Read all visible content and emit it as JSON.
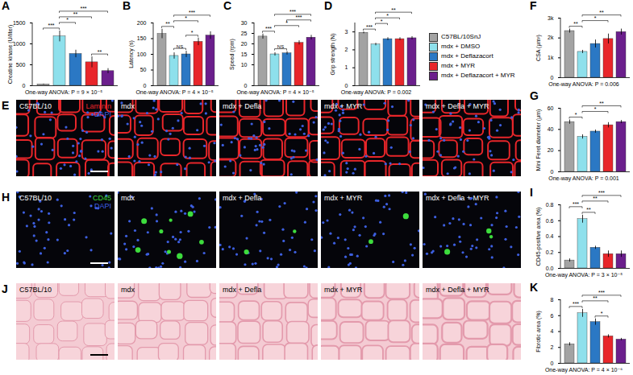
{
  "groups": [
    {
      "name": "C57BL/10SnJ",
      "color": "#a3a3a3"
    },
    {
      "name": "mdx + DMSO",
      "color": "#8ee0ec"
    },
    {
      "name": "mdx + Deflazacort",
      "color": "#2b78c4"
    },
    {
      "name": "mdx + MYR",
      "color": "#e8262a"
    },
    {
      "name": "mdx + Deflazacort + MYR",
      "color": "#6b1f8c"
    }
  ],
  "image_panels": [
    {
      "panel": "E",
      "labels": [
        "C57BL/10",
        "mdx",
        "mdx + Defla",
        "mdx + MYR",
        "mdx + Defla + MYR"
      ],
      "stains": [
        {
          "text": "Laminin",
          "color": "#e8262a"
        },
        {
          "text": "DAPI",
          "color": "#3d5fe0"
        }
      ]
    },
    {
      "panel": "H",
      "labels": [
        "C57BL/10",
        "mdx",
        "mdx + Defla",
        "mdx + MYR",
        "mdx + Defla + MYR"
      ],
      "stains": [
        {
          "text": "CD45",
          "color": "#3ddc3d"
        },
        {
          "text": "DAPI",
          "color": "#3d5fe0"
        }
      ]
    },
    {
      "panel": "J",
      "labels": [
        "C57BL/10",
        "mdx",
        "mdx + Defla",
        "mdx + MYR",
        "mdx + Defla + MYR"
      ],
      "stains": []
    }
  ],
  "chart_data": [
    {
      "type": "bar",
      "panel": "A",
      "y_label": "Creatine kinase (U/liter)",
      "tick_labels": "y",
      "categories": [
        "C57BL/10SnJ",
        "mdx + DMSO",
        "mdx + Deflazacort",
        "mdx + MYR",
        "mdx + Deflazacort + MYR"
      ],
      "values": [
        30,
        1180,
        760,
        560,
        350
      ],
      "errors": [
        10,
        130,
        90,
        130,
        60
      ],
      "colors": [
        "#a3a3a3",
        "#8ee0ec",
        "#2b78c4",
        "#e8262a",
        "#6b1f8c"
      ],
      "ylim": [
        0,
        1500
      ],
      "yticks": [
        0,
        500,
        1000,
        1500
      ],
      "significance": [
        {
          "from": 0,
          "to": 1,
          "label": "***"
        },
        {
          "from": 1,
          "to": 2,
          "label": "*"
        },
        {
          "from": 3,
          "to": 4,
          "label": "**"
        },
        {
          "from": 1,
          "to": 3,
          "label": "**"
        },
        {
          "from": 1,
          "to": 4,
          "label": "***"
        }
      ],
      "note": "One-way ANOVA: P = 9 × 10⁻⁵"
    },
    {
      "type": "bar",
      "panel": "B",
      "y_label": "Latency (s)",
      "tick_labels": "y",
      "categories": [
        "C57BL/10SnJ",
        "mdx + DMSO",
        "mdx + Deflazacort",
        "mdx + MYR",
        "mdx + Deflazacort + MYR"
      ],
      "values": [
        165,
        95,
        100,
        140,
        160
      ],
      "errors": [
        15,
        10,
        10,
        12,
        12
      ],
      "colors": [
        "#a3a3a3",
        "#8ee0ec",
        "#2b78c4",
        "#e8262a",
        "#6b1f8c"
      ],
      "ylim": [
        0,
        200
      ],
      "yticks": [
        0,
        50,
        100,
        150,
        200
      ],
      "significance": [
        {
          "from": 1,
          "to": 2,
          "label": "NS"
        },
        {
          "from": 2,
          "to": 3,
          "label": "*"
        },
        {
          "from": 0,
          "to": 1,
          "label": "**"
        },
        {
          "from": 1,
          "to": 3,
          "label": "*"
        },
        {
          "from": 1,
          "to": 4,
          "label": "***"
        }
      ],
      "note": "One-way ANOVA: P = 4 × 10⁻⁵"
    },
    {
      "type": "bar",
      "panel": "C",
      "y_label": "Speed (rpm)",
      "tick_labels": "y",
      "categories": [
        "C57BL/10SnJ",
        "mdx + DMSO",
        "mdx + Deflazacort",
        "mdx + MYR",
        "mdx + Deflazacort + MYR"
      ],
      "values": [
        23.5,
        15,
        15.5,
        20.5,
        23
      ],
      "errors": [
        1.2,
        0.8,
        0.8,
        1,
        1.1
      ],
      "colors": [
        "#a3a3a3",
        "#8ee0ec",
        "#2b78c4",
        "#e8262a",
        "#6b1f8c"
      ],
      "ylim": [
        0,
        30
      ],
      "yticks": [
        0,
        10,
        15,
        20,
        25,
        30
      ],
      "significance": [
        {
          "from": 1,
          "to": 2,
          "label": "NS"
        },
        {
          "from": 0,
          "to": 1,
          "label": "***"
        },
        {
          "from": 1,
          "to": 3,
          "label": "*"
        },
        {
          "from": 2,
          "to": 4,
          "label": "***"
        },
        {
          "from": 1,
          "to": 4,
          "label": "***"
        }
      ],
      "note": "One-way ANOVA: P = 4 × 10⁻⁵"
    },
    {
      "type": "bar",
      "panel": "D",
      "y_label": "Grip strength (N)",
      "tick_labels": "y",
      "categories": [
        "C57BL/10SnJ",
        "mdx + DMSO",
        "mdx + Deflazacort",
        "mdx + MYR",
        "mdx + Deflazacort + MYR"
      ],
      "values": [
        2.95,
        2.3,
        2.6,
        2.6,
        2.65
      ],
      "errors": [
        0.05,
        0.07,
        0.08,
        0.08,
        0.09
      ],
      "colors": [
        "#a3a3a3",
        "#8ee0ec",
        "#2b78c4",
        "#e8262a",
        "#6b1f8c"
      ],
      "ylim": [
        0,
        3.5
      ],
      "yticks": [
        0,
        1,
        2,
        3
      ],
      "significance": [
        {
          "from": 0,
          "to": 1,
          "label": "***"
        },
        {
          "from": 1,
          "to": 2,
          "label": "*"
        },
        {
          "from": 1,
          "to": 3,
          "label": "*"
        },
        {
          "from": 1,
          "to": 4,
          "label": "**"
        }
      ],
      "note": "One-way ANOVA: P = 0.002"
    },
    {
      "type": "bar",
      "panel": "F",
      "y_label": "CSA (µm²)",
      "tick_labels": "y",
      "categories": [
        "C57BL/10SnJ",
        "mdx + DMSO",
        "mdx + Deflazacort",
        "mdx + MYR",
        "mdx + Deflazacort + MYR"
      ],
      "values": [
        2350,
        1300,
        1700,
        1950,
        2300
      ],
      "errors": [
        100,
        80,
        200,
        250,
        150
      ],
      "colors": [
        "#a3a3a3",
        "#8ee0ec",
        "#2b78c4",
        "#e8262a",
        "#6b1f8c"
      ],
      "ylim": [
        0,
        3000
      ],
      "yticks": [
        0,
        {
          "value": 1000,
          "label": "1k"
        },
        {
          "value": 2000,
          "label": "2k"
        },
        {
          "value": 3000,
          "label": "3k"
        }
      ],
      "significance": [
        {
          "from": 0,
          "to": 1,
          "label": "**"
        },
        {
          "from": 1,
          "to": 3,
          "label": "*"
        },
        {
          "from": 1,
          "to": 4,
          "label": "**"
        }
      ],
      "note": "One-way ANOVA: P = 0.006"
    },
    {
      "type": "bar",
      "panel": "G",
      "y_label": "Mini Feret diameter (µm)",
      "tick_labels": "y",
      "categories": [
        "C57BL/10SnJ",
        "mdx + DMSO",
        "mdx + Deflazacort",
        "mdx + MYR",
        "mdx + Deflazacort + MYR"
      ],
      "values": [
        47,
        33,
        38,
        44,
        47
      ],
      "errors": [
        2,
        2,
        1.5,
        2.5,
        1.5
      ],
      "colors": [
        "#a3a3a3",
        "#8ee0ec",
        "#2b78c4",
        "#e8262a",
        "#6b1f8c"
      ],
      "ylim": [
        0,
        60
      ],
      "yticks": [
        0,
        20,
        40,
        60
      ],
      "significance": [
        {
          "from": 0,
          "to": 1,
          "label": "*"
        },
        {
          "from": 1,
          "to": 3,
          "label": "*"
        },
        {
          "from": 1,
          "to": 4,
          "label": "**"
        }
      ],
      "note": "One-way ANOVA: P = 0.001"
    },
    {
      "type": "bar",
      "panel": "I",
      "y_label": "CD45-positive area (%)",
      "tick_labels": "y",
      "categories": [
        "C57BL/10SnJ",
        "mdx + DMSO",
        "mdx + Deflazacort",
        "mdx + MYR",
        "mdx + Deflazacort + MYR"
      ],
      "values": [
        0.1,
        0.62,
        0.26,
        0.18,
        0.18
      ],
      "errors": [
        0.02,
        0.05,
        0.02,
        0.04,
        0.04
      ],
      "colors": [
        "#a3a3a3",
        "#8ee0ec",
        "#2b78c4",
        "#e8262a",
        "#6b1f8c"
      ],
      "ylim": [
        0,
        0.8
      ],
      "yticks": [
        {
          "value": 0,
          "label": "0.0"
        },
        0.2,
        0.4,
        0.6,
        0.8
      ],
      "significance": [
        {
          "from": 1,
          "to": 2,
          "label": "**"
        },
        {
          "from": 0,
          "to": 1,
          "label": "***"
        },
        {
          "from": 1,
          "to": 3,
          "label": "**"
        },
        {
          "from": 1,
          "to": 4,
          "label": "***"
        }
      ],
      "note": "One-way ANOVA: P = 3 × 10⁻⁵"
    },
    {
      "type": "bar",
      "panel": "K",
      "y_label": "Fibrotic area (%)",
      "tick_labels": "y",
      "categories": [
        "C57BL/10SnJ",
        "mdx + DMSO",
        "mdx + Deflazacort",
        "mdx + MYR",
        "mdx + Deflazacort + MYR"
      ],
      "values": [
        2.4,
        6.3,
        5.2,
        3.4,
        3.0
      ],
      "errors": [
        0.2,
        0.5,
        0.4,
        0.2,
        0.15
      ],
      "colors": [
        "#a3a3a3",
        "#8ee0ec",
        "#2b78c4",
        "#e8262a",
        "#6b1f8c"
      ],
      "ylim": [
        0,
        8
      ],
      "yticks": [
        0,
        2,
        4,
        6,
        8
      ],
      "significance": [
        {
          "from": 2,
          "to": 3,
          "label": "*"
        },
        {
          "from": 0,
          "to": 1,
          "label": "***"
        },
        {
          "from": 1,
          "to": 3,
          "label": "**"
        },
        {
          "from": 1,
          "to": 4,
          "label": "***"
        }
      ],
      "note": "One-way ANOVA: P = 4 × 10⁻⁶"
    }
  ]
}
